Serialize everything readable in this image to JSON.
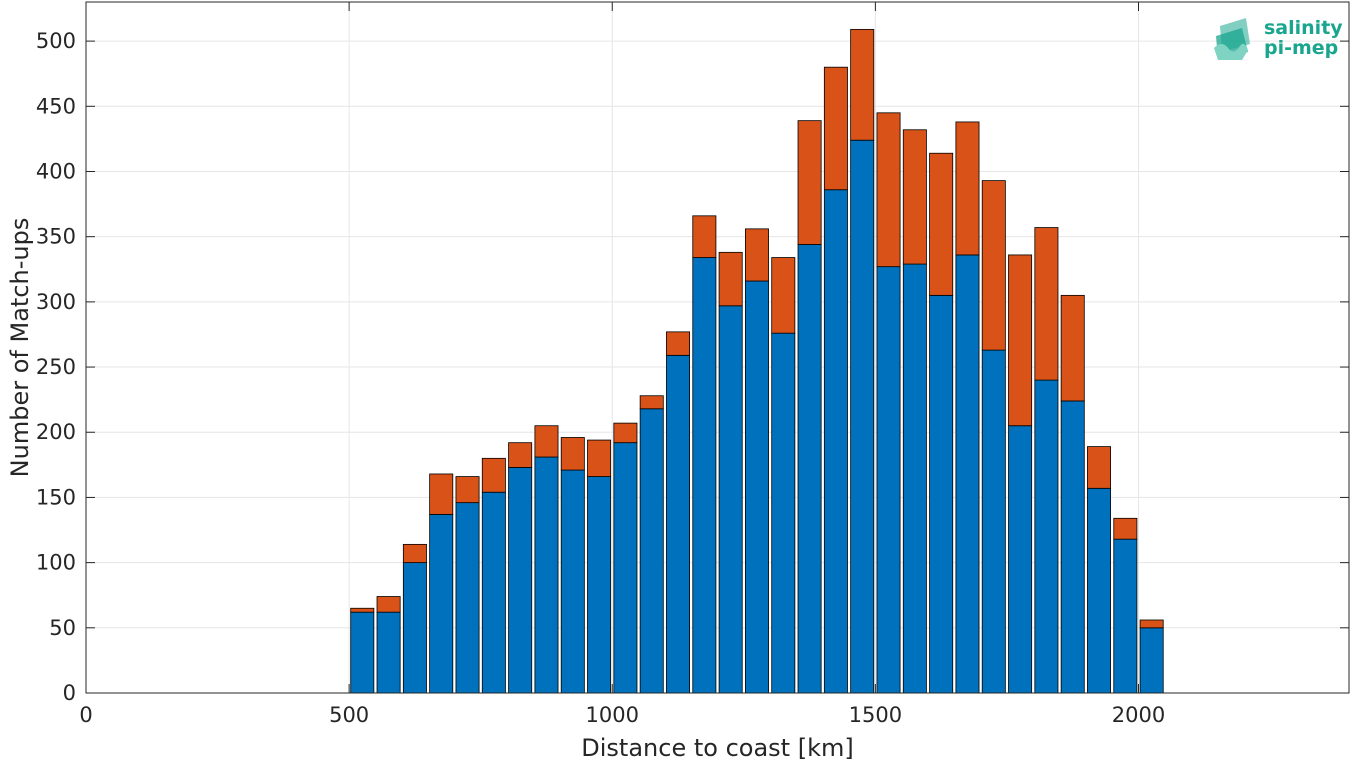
{
  "logo": {
    "line1": "salinity",
    "line2": "pi-mep",
    "color": "#1aa58f"
  },
  "chart_data": {
    "type": "bar",
    "stacked": true,
    "title": "",
    "xlabel": "Distance to coast [km]",
    "ylabel": "Number of Match-ups",
    "xlim": [
      0,
      2400
    ],
    "ylim": [
      0,
      530
    ],
    "xticks": [
      0,
      500,
      1000,
      1500,
      2000
    ],
    "yticks": [
      0,
      50,
      100,
      150,
      200,
      250,
      300,
      350,
      400,
      450,
      500
    ],
    "grid": true,
    "bar_width_km": 44,
    "x": [
      525,
      575,
      625,
      675,
      725,
      775,
      825,
      875,
      925,
      975,
      1025,
      1075,
      1125,
      1175,
      1225,
      1275,
      1325,
      1375,
      1425,
      1475,
      1525,
      1575,
      1625,
      1675,
      1725,
      1775,
      1825,
      1875,
      1925,
      1975,
      2025
    ],
    "series": [
      {
        "color": "#0072bd",
        "values": [
          62,
          62,
          100,
          137,
          146,
          154,
          173,
          181,
          171,
          166,
          192,
          218,
          259,
          334,
          297,
          316,
          276,
          344,
          386,
          424,
          327,
          329,
          305,
          336,
          263,
          205,
          240,
          224,
          157,
          118,
          50
        ]
      },
      {
        "color": "#d95319",
        "values": [
          3,
          12,
          14,
          31,
          20,
          26,
          19,
          24,
          25,
          28,
          15,
          10,
          18,
          32,
          41,
          40,
          58,
          95,
          94,
          85,
          118,
          103,
          109,
          102,
          130,
          131,
          117,
          81,
          32,
          16,
          6
        ]
      }
    ]
  }
}
